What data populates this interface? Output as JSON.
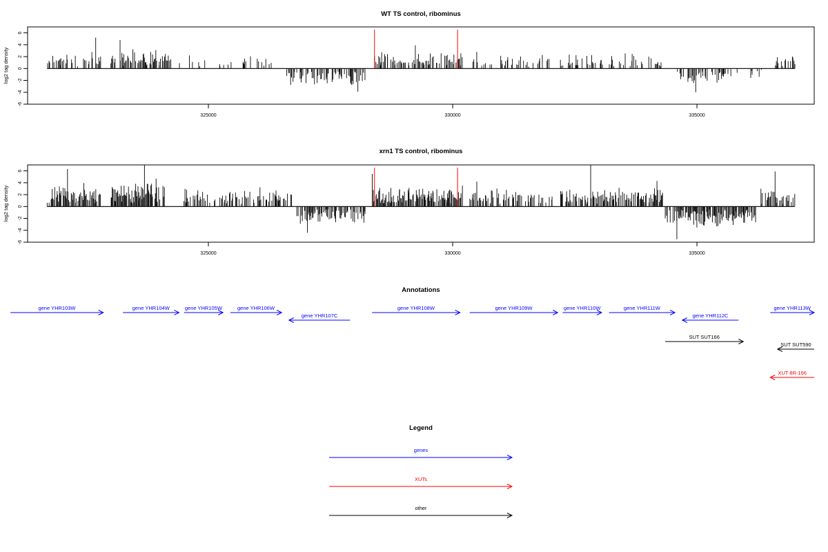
{
  "colors": {
    "gene": "#0000ff",
    "xut": "#ff0000",
    "other": "#000000",
    "marker": "#ff0000",
    "bar": "#000000"
  },
  "chart_data": [
    {
      "type": "bar",
      "title": "WT TS control, ribominus",
      "ylabel": "log2 tag density",
      "xlim": [
        321300,
        337400
      ],
      "ylim": [
        -6,
        7
      ],
      "yticks": [
        "-6",
        "-4",
        "-2",
        "0",
        "2",
        "4",
        "6"
      ],
      "xticks": [
        "325000",
        "330000",
        "335000"
      ],
      "markers_x": [
        328400,
        330100
      ],
      "segments": [
        {
          "start": 321700,
          "end": 322800,
          "sign": 1,
          "density": 0.35,
          "amp": 2.2,
          "peak": 5.2,
          "seed": 11
        },
        {
          "start": 323000,
          "end": 324250,
          "sign": 1,
          "density": 0.65,
          "amp": 2.4,
          "peak": 4.8,
          "seed": 12
        },
        {
          "start": 324350,
          "end": 325500,
          "sign": 1,
          "density": 0.12,
          "amp": 1.4,
          "peak": 2.2,
          "seed": 13
        },
        {
          "start": 325700,
          "end": 326300,
          "sign": 1,
          "density": 0.25,
          "amp": 1.8,
          "peak": 3.0,
          "seed": 14
        },
        {
          "start": 326600,
          "end": 328200,
          "sign": -1,
          "density": 0.55,
          "amp": 2.3,
          "peak": 3.9,
          "seed": 15
        },
        {
          "start": 328400,
          "end": 330200,
          "sign": 1,
          "density": 0.5,
          "amp": 2.2,
          "peak": 3.9,
          "seed": 16
        },
        {
          "start": 330300,
          "end": 332000,
          "sign": 1,
          "density": 0.2,
          "amp": 1.7,
          "peak": 2.8,
          "seed": 17
        },
        {
          "start": 332200,
          "end": 334300,
          "sign": 1,
          "density": 0.4,
          "amp": 2.0,
          "peak": 3.5,
          "seed": 18
        },
        {
          "start": 334600,
          "end": 335700,
          "sign": -1,
          "density": 0.5,
          "amp": 2.0,
          "peak": 4.0,
          "seed": 19
        },
        {
          "start": 335800,
          "end": 336400,
          "sign": -1,
          "density": 0.12,
          "amp": 1.2,
          "peak": 2.2,
          "seed": 20
        },
        {
          "start": 336600,
          "end": 337000,
          "sign": 1,
          "density": 0.35,
          "amp": 1.8,
          "peak": 2.8,
          "seed": 21
        }
      ]
    },
    {
      "type": "bar",
      "title": "xrn1 TS control, ribominus",
      "ylabel": "log2 tag density",
      "xlim": [
        321300,
        337400
      ],
      "ylim": [
        -6,
        7
      ],
      "yticks": [
        "-6",
        "-4",
        "-2",
        "0",
        "2",
        "4",
        "6"
      ],
      "xticks": [
        "325000",
        "330000",
        "335000"
      ],
      "markers_x": [
        328400,
        330100
      ],
      "segments": [
        {
          "start": 321700,
          "end": 322800,
          "sign": 1,
          "density": 0.75,
          "amp": 3.0,
          "peak": 6.3,
          "seed": 31
        },
        {
          "start": 323000,
          "end": 324100,
          "sign": 1,
          "density": 0.9,
          "amp": 3.5,
          "peak": 7.0,
          "seed": 32
        },
        {
          "start": 324100,
          "end": 324450,
          "sign": -1,
          "density": 0.08,
          "amp": 1.0,
          "peak": 2.8,
          "seed": 33
        },
        {
          "start": 324500,
          "end": 326700,
          "sign": 1,
          "density": 0.55,
          "amp": 2.4,
          "peak": 4.5,
          "seed": 34
        },
        {
          "start": 326800,
          "end": 328200,
          "sign": -1,
          "density": 0.7,
          "amp": 2.3,
          "peak": 4.4,
          "seed": 35
        },
        {
          "start": 328350,
          "end": 330200,
          "sign": 1,
          "density": 0.8,
          "amp": 2.8,
          "peak": 5.5,
          "seed": 36
        },
        {
          "start": 330350,
          "end": 332100,
          "sign": 1,
          "density": 0.45,
          "amp": 2.3,
          "peak": 4.2,
          "seed": 37
        },
        {
          "start": 332200,
          "end": 333800,
          "sign": 1,
          "density": 0.6,
          "amp": 2.6,
          "peak": 7.0,
          "seed": 38
        },
        {
          "start": 333800,
          "end": 334300,
          "sign": 1,
          "density": 0.7,
          "amp": 2.6,
          "peak": 4.3,
          "seed": 39
        },
        {
          "start": 334350,
          "end": 336200,
          "sign": -1,
          "density": 0.8,
          "amp": 2.6,
          "peak": 5.5,
          "seed": 40
        },
        {
          "start": 336300,
          "end": 337000,
          "sign": 1,
          "density": 0.6,
          "amp": 2.3,
          "peak": 5.9,
          "seed": 41
        }
      ]
    }
  ],
  "annotations": {
    "title": "Annotations",
    "features": [
      {
        "label": "gene YHR103W",
        "type": "gene",
        "strand": "+",
        "start": 320950,
        "end": 322850
      },
      {
        "label": "gene YHR104W",
        "type": "gene",
        "strand": "+",
        "start": 323250,
        "end": 324400
      },
      {
        "label": "gene YHR105W",
        "type": "gene",
        "strand": "+",
        "start": 324500,
        "end": 325300
      },
      {
        "label": "gene YHR106W",
        "type": "gene",
        "strand": "+",
        "start": 325450,
        "end": 326500
      },
      {
        "label": "gene YHR107C",
        "type": "gene",
        "strand": "-",
        "start": 326650,
        "end": 327900
      },
      {
        "label": "gene YHR108W",
        "type": "gene",
        "strand": "+",
        "start": 328350,
        "end": 330150
      },
      {
        "label": "gene YHR109W",
        "type": "gene",
        "strand": "+",
        "start": 330350,
        "end": 332150
      },
      {
        "label": "gene YHR110W",
        "type": "gene",
        "strand": "+",
        "start": 332250,
        "end": 333050
      },
      {
        "label": "gene YHR111W",
        "type": "gene",
        "strand": "+",
        "start": 333200,
        "end": 334550
      },
      {
        "label": "gene YHR112C",
        "type": "gene",
        "strand": "-",
        "start": 334700,
        "end": 335850
      },
      {
        "label": "gene YHR113W",
        "type": "gene",
        "strand": "+",
        "start": 336500,
        "end": 337400
      },
      {
        "label": "SUT SUT166",
        "type": "other",
        "strand": "+",
        "start": 334350,
        "end": 335950
      },
      {
        "label": "SUT SUT590",
        "type": "other",
        "strand": "-",
        "start": 336650,
        "end": 337400
      },
      {
        "label": "XUT 8R-166",
        "type": "xut",
        "strand": "-",
        "start": 336500,
        "end": 337400
      }
    ]
  },
  "legend": {
    "title": "Legend",
    "items": [
      {
        "label": "genes",
        "type": "gene"
      },
      {
        "label": "XUTs",
        "type": "xut"
      },
      {
        "label": "other",
        "type": "other"
      }
    ]
  }
}
